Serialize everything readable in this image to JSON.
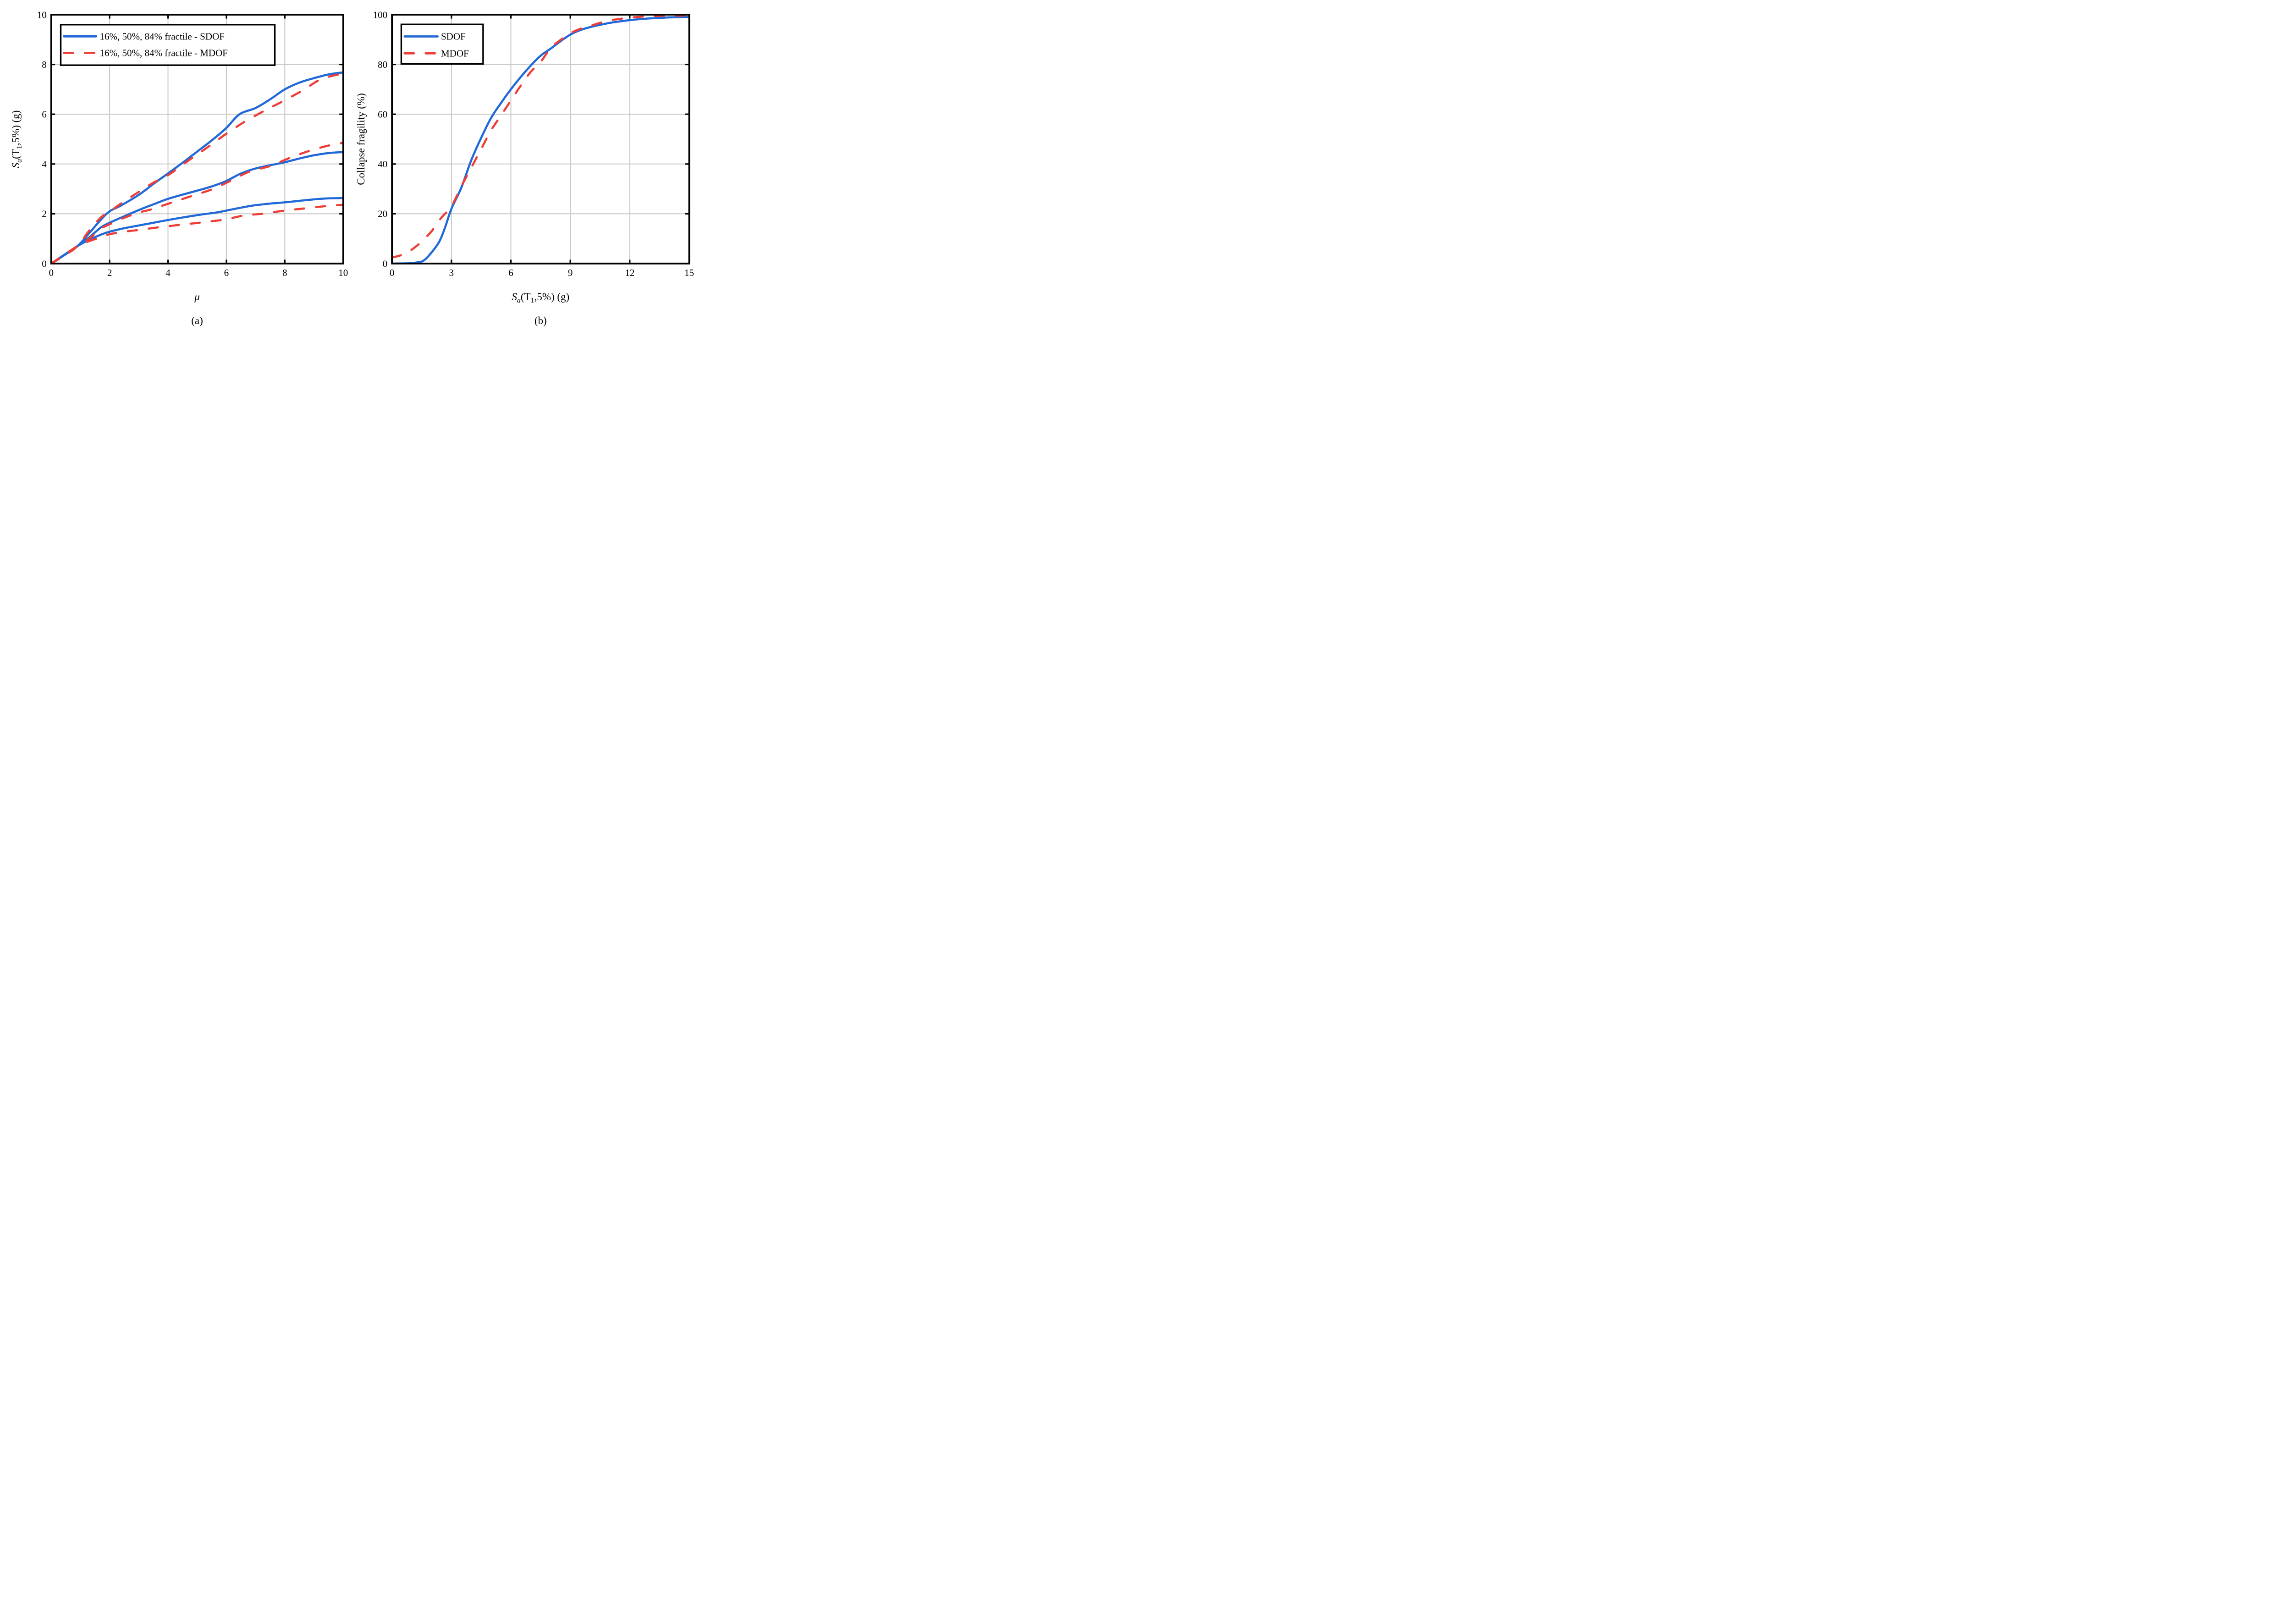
{
  "figure": {
    "caption_a": "(a)",
    "caption_b": "(b)",
    "background": "#ffffff"
  },
  "colors": {
    "sdof": "#2169d8",
    "mdof": "#ee3e38",
    "grid": "#c8c8c8",
    "axis": "#000000"
  },
  "labels": {
    "mu": "μ",
    "collapse": "Collapse fragility (%)",
    "sa_s": "S",
    "sa_sub": "a",
    "sa_mid": "(T",
    "sa_sub1": "1",
    "sa_tail": ",5%) (g)"
  },
  "legend_a": {
    "sdof": "16%, 50%, 84% fractile - SDOF",
    "mdof": "16%, 50%, 84% fractile - MDOF"
  },
  "legend_b": {
    "sdof": "SDOF",
    "mdof": "MDOF"
  },
  "chart_data": [
    {
      "id": "a",
      "type": "line",
      "xlabel": "μ",
      "ylabel": "Sa(T1,5%) (g)",
      "xlim": [
        0,
        10
      ],
      "ylim": [
        0,
        10
      ],
      "xticks": [
        0,
        2,
        4,
        6,
        8,
        10
      ],
      "yticks": [
        0,
        2,
        4,
        6,
        8,
        10
      ],
      "grid": true,
      "legend_position": "top-left",
      "series": [
        {
          "name": "84% fractile - SDOF",
          "color": "sdof",
          "dash": false,
          "points": [
            [
              0,
              0
            ],
            [
              0.45,
              0.34
            ],
            [
              0.9,
              0.7
            ],
            [
              1.3,
              1.22
            ],
            [
              1.7,
              1.76
            ],
            [
              2,
              2.1
            ],
            [
              2.4,
              2.34
            ],
            [
              3,
              2.76
            ],
            [
              3.5,
              3.2
            ],
            [
              4,
              3.62
            ],
            [
              4.5,
              4.05
            ],
            [
              5,
              4.5
            ],
            [
              5.5,
              4.95
            ],
            [
              6,
              5.45
            ],
            [
              6.45,
              6.0
            ],
            [
              7,
              6.25
            ],
            [
              7.5,
              6.6
            ],
            [
              8,
              7.0
            ],
            [
              8.5,
              7.27
            ],
            [
              9,
              7.45
            ],
            [
              9.5,
              7.6
            ],
            [
              10,
              7.68
            ]
          ]
        },
        {
          "name": "50% fractile - SDOF",
          "color": "sdof",
          "dash": false,
          "points": [
            [
              0,
              0
            ],
            [
              0.9,
              0.7
            ],
            [
              1.3,
              1.05
            ],
            [
              1.7,
              1.45
            ],
            [
              2,
              1.64
            ],
            [
              2.5,
              1.9
            ],
            [
              3,
              2.15
            ],
            [
              3.5,
              2.38
            ],
            [
              4,
              2.6
            ],
            [
              4.5,
              2.77
            ],
            [
              5,
              2.93
            ],
            [
              5.5,
              3.1
            ],
            [
              6,
              3.32
            ],
            [
              6.5,
              3.62
            ],
            [
              7,
              3.82
            ],
            [
              7.5,
              3.95
            ],
            [
              8,
              4.07
            ],
            [
              8.5,
              4.22
            ],
            [
              9,
              4.35
            ],
            [
              9.5,
              4.44
            ],
            [
              10,
              4.48
            ]
          ]
        },
        {
          "name": "16% fractile - SDOF",
          "color": "sdof",
          "dash": false,
          "points": [
            [
              0,
              0
            ],
            [
              0.9,
              0.7
            ],
            [
              1.3,
              0.95
            ],
            [
              1.7,
              1.16
            ],
            [
              2,
              1.28
            ],
            [
              2.5,
              1.42
            ],
            [
              3,
              1.53
            ],
            [
              3.5,
              1.64
            ],
            [
              4,
              1.75
            ],
            [
              4.6,
              1.87
            ],
            [
              5.2,
              1.98
            ],
            [
              5.7,
              2.06
            ],
            [
              6.3,
              2.2
            ],
            [
              6.9,
              2.33
            ],
            [
              7.5,
              2.41
            ],
            [
              8,
              2.46
            ],
            [
              8.5,
              2.52
            ],
            [
              9,
              2.58
            ],
            [
              9.5,
              2.62
            ],
            [
              10,
              2.63
            ]
          ]
        },
        {
          "name": "84% fractile - MDOF",
          "color": "mdof",
          "dash": true,
          "points": [
            [
              0,
              0
            ],
            [
              0.45,
              0.32
            ],
            [
              0.9,
              0.7
            ],
            [
              1.3,
              1.32
            ],
            [
              1.7,
              1.85
            ],
            [
              2,
              2.08
            ],
            [
              2.35,
              2.38
            ],
            [
              3,
              2.88
            ],
            [
              3.5,
              3.25
            ],
            [
              4,
              3.55
            ],
            [
              4.75,
              4.18
            ],
            [
              5.4,
              4.71
            ],
            [
              6,
              5.22
            ],
            [
              6.6,
              5.68
            ],
            [
              7.3,
              6.14
            ],
            [
              7.9,
              6.5
            ],
            [
              8.6,
              6.95
            ],
            [
              9.25,
              7.41
            ],
            [
              10,
              7.64
            ]
          ]
        },
        {
          "name": "50% fractile - MDOF",
          "color": "mdof",
          "dash": true,
          "points": [
            [
              0,
              0
            ],
            [
              0.9,
              0.7
            ],
            [
              1.3,
              1.0
            ],
            [
              1.7,
              1.4
            ],
            [
              2,
              1.58
            ],
            [
              2.5,
              1.84
            ],
            [
              3,
              2.05
            ],
            [
              3.4,
              2.17
            ],
            [
              4.1,
              2.44
            ],
            [
              4.8,
              2.71
            ],
            [
              5.5,
              2.98
            ],
            [
              6.1,
              3.3
            ],
            [
              6.8,
              3.7
            ],
            [
              7.5,
              3.92
            ],
            [
              8.2,
              4.26
            ],
            [
              8.9,
              4.55
            ],
            [
              9.6,
              4.77
            ],
            [
              10,
              4.85
            ]
          ]
        },
        {
          "name": "16% fractile - MDOF",
          "color": "mdof",
          "dash": true,
          "points": [
            [
              0,
              0
            ],
            [
              0.9,
              0.7
            ],
            [
              1.3,
              0.9
            ],
            [
              1.7,
              1.06
            ],
            [
              2,
              1.18
            ],
            [
              2.5,
              1.28
            ],
            [
              3,
              1.35
            ],
            [
              3.5,
              1.43
            ],
            [
              4,
              1.5
            ],
            [
              4.5,
              1.57
            ],
            [
              5,
              1.63
            ],
            [
              5.5,
              1.7
            ],
            [
              6,
              1.78
            ],
            [
              6.6,
              1.93
            ],
            [
              7.3,
              2.01
            ],
            [
              8,
              2.13
            ],
            [
              8.8,
              2.23
            ],
            [
              9.5,
              2.32
            ],
            [
              10,
              2.36
            ]
          ]
        }
      ]
    },
    {
      "id": "b",
      "type": "line",
      "xlabel": "Sa(T1,5%) (g)",
      "ylabel": "Collapse fragility (%)",
      "xlim": [
        0,
        15
      ],
      "ylim": [
        0,
        100
      ],
      "xticks": [
        0,
        3,
        6,
        9,
        12,
        15
      ],
      "yticks": [
        0,
        20,
        40,
        60,
        80,
        100
      ],
      "grid": true,
      "legend_position": "top-left",
      "series": [
        {
          "name": "SDOF",
          "color": "sdof",
          "dash": false,
          "points": [
            [
              0,
              0
            ],
            [
              0.8,
              0.1
            ],
            [
              1.2,
              0.4
            ],
            [
              1.6,
              1.2
            ],
            [
              2,
              4.5
            ],
            [
              2.4,
              9
            ],
            [
              2.7,
              15
            ],
            [
              3,
              22
            ],
            [
              3.5,
              30.5
            ],
            [
              4,
              41.5
            ],
            [
              4.5,
              50.5
            ],
            [
              5,
              58.5
            ],
            [
              5.5,
              64.5
            ],
            [
              6,
              70
            ],
            [
              6.5,
              75
            ],
            [
              7,
              79.5
            ],
            [
              7.5,
              83.5
            ],
            [
              8,
              86.3
            ],
            [
              8.5,
              89.3
            ],
            [
              9,
              92
            ],
            [
              9.5,
              93.8
            ],
            [
              10,
              95
            ],
            [
              10.5,
              95.9
            ],
            [
              11,
              96.7
            ],
            [
              11.5,
              97.3
            ],
            [
              12,
              97.8
            ],
            [
              12.5,
              98.2
            ],
            [
              13,
              98.5
            ],
            [
              13.5,
              98.7
            ],
            [
              14,
              98.9
            ],
            [
              14.5,
              99
            ],
            [
              15,
              99.1
            ]
          ]
        },
        {
          "name": "MDOF",
          "color": "mdof",
          "dash": true,
          "points": [
            [
              0,
              2.4
            ],
            [
              0.5,
              3.5
            ],
            [
              1,
              5.6
            ],
            [
              1.5,
              8.9
            ],
            [
              2,
              13
            ],
            [
              2.5,
              18.5
            ],
            [
              3,
              23
            ],
            [
              3.5,
              31
            ],
            [
              4,
              38.5
            ],
            [
              4.5,
              46
            ],
            [
              5,
              53.5
            ],
            [
              5.5,
              59.5
            ],
            [
              6,
              65.5
            ],
            [
              6.5,
              71.5
            ],
            [
              7,
              77
            ],
            [
              7.5,
              81
            ],
            [
              8,
              86.5
            ],
            [
              8.5,
              89.8
            ],
            [
              9,
              92.5
            ],
            [
              9.5,
              94.3
            ],
            [
              10,
              95.5
            ],
            [
              10.5,
              96.7
            ],
            [
              11,
              97.7
            ],
            [
              11.5,
              98.3
            ],
            [
              12,
              98.8
            ],
            [
              13,
              99.4
            ],
            [
              14,
              99.6
            ],
            [
              15,
              99.7
            ]
          ]
        }
      ]
    }
  ]
}
